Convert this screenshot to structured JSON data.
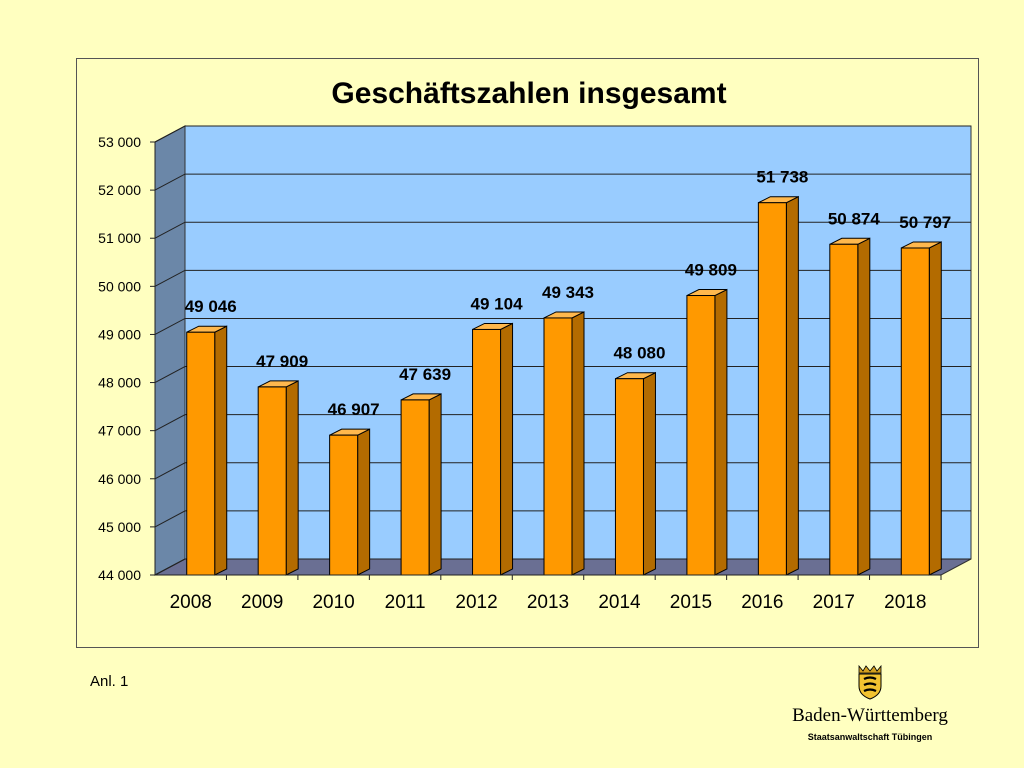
{
  "chart_data": {
    "type": "bar",
    "title": "Geschäftszahlen insgesamt",
    "categories": [
      "2008",
      "2009",
      "2010",
      "2011",
      "2012",
      "2013",
      "2014",
      "2015",
      "2016",
      "2017",
      "2018"
    ],
    "values": [
      49046,
      47909,
      46907,
      47639,
      49104,
      49343,
      48080,
      49809,
      51738,
      50874,
      50797
    ],
    "value_labels": [
      "49 046",
      "47 909",
      "46 907",
      "47 639",
      "49 104",
      "49 343",
      "48 080",
      "49 809",
      "51 738",
      "50 874",
      "50 797"
    ],
    "ylim": [
      44000,
      53000
    ],
    "yticks": [
      44000,
      45000,
      46000,
      47000,
      48000,
      49000,
      50000,
      51000,
      52000,
      53000
    ],
    "ytick_labels": [
      "44 000",
      "45 000",
      "46 000",
      "47 000",
      "48 000",
      "49 000",
      "50 000",
      "51 000",
      "52 000",
      "53 000"
    ],
    "xlabel": "",
    "ylabel": "",
    "grid": true,
    "style": "3d-bars",
    "colors": {
      "bar_front": "#ff9900",
      "bar_side": "#b36b00",
      "bar_top": "#ffb84d",
      "plot_back": "#99ccff",
      "plot_side": "#6b87a8",
      "plot_floor": "#6a6f93",
      "page_background": "#ffffc0"
    }
  },
  "footer": {
    "annotation": "Anl. 1",
    "brand": "Baden-Württemberg",
    "organization": "Staatsanwaltschaft Tübingen",
    "logo": "coat-of-arms-icon"
  }
}
